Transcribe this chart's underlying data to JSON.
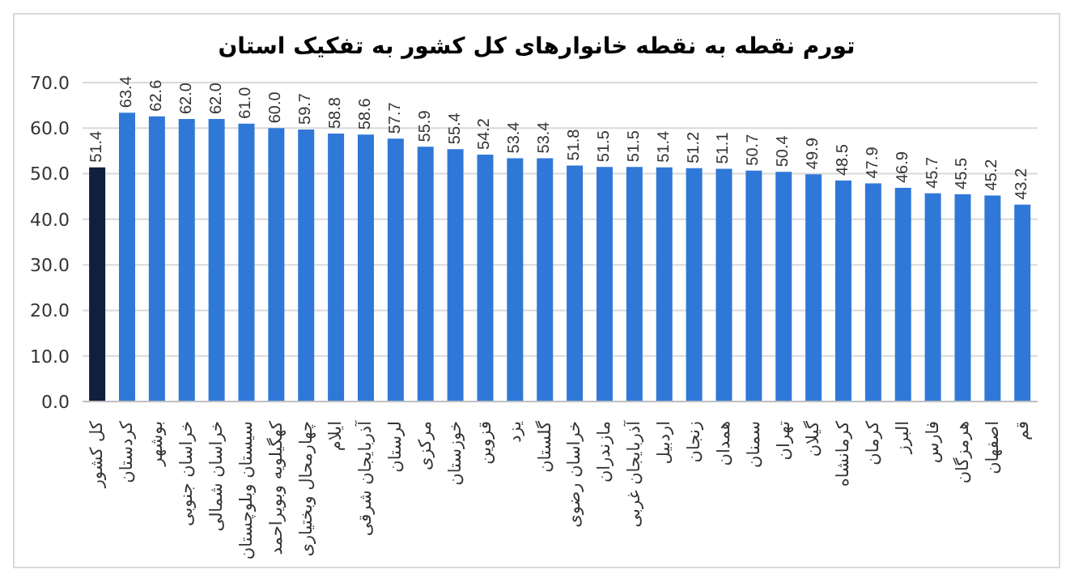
{
  "chart_data": {
    "type": "bar",
    "title": "تورم  نقطه به نقطه خانوارهای کل کشور به تفکیک استان",
    "categories": [
      "کل کشور",
      "کردستان",
      "بوشهر",
      "خراسان جنوبی",
      "خراسان شمالی",
      "سیستان وبلوچستان",
      "کهگیلویه وبویراحمد",
      "چهارمحال وبختیاری",
      "ایلام",
      "آذربایجان شرقی",
      "لرستان",
      "مرکزی",
      "خوزستان",
      "قزوین",
      "یزد",
      "گلستان",
      "خراسان رضوی",
      "مازندران",
      "آذربایجان غربی",
      "اردبیل",
      "زنجان",
      "همدان",
      "سمنان",
      "تهران",
      "گیلان",
      "کرمانشاه",
      "کرمان",
      "البرز",
      "فارس",
      "هرمزگان",
      "اصفهان",
      "قم"
    ],
    "values": [
      51.4,
      63.4,
      62.6,
      62.0,
      62.0,
      61.0,
      60.0,
      59.7,
      58.8,
      58.6,
      57.7,
      55.9,
      55.4,
      54.2,
      53.4,
      53.4,
      51.8,
      51.5,
      51.5,
      51.4,
      51.2,
      51.1,
      50.7,
      50.4,
      49.9,
      48.5,
      47.9,
      46.9,
      45.7,
      45.5,
      45.2,
      43.2
    ],
    "value_labels": [
      "51.4",
      "63.4",
      "62.6",
      "62.0",
      "62.0",
      "61.0",
      "60.0",
      "59.7",
      "58.8",
      "58.6",
      "57.7",
      "55.9",
      "55.4",
      "54.2",
      "53.4",
      "53.4",
      "51.8",
      "51.5",
      "51.5",
      "51.4",
      "51.2",
      "51.1",
      "50.7",
      "50.4",
      "49.9",
      "48.5",
      "47.9",
      "46.9",
      "45.7",
      "45.5",
      "45.2",
      "43.2"
    ],
    "colors": [
      "#0f1f3d",
      "#2f78d8",
      "#2f78d8",
      "#2f78d8",
      "#2f78d8",
      "#2f78d8",
      "#2f78d8",
      "#2f78d8",
      "#2f78d8",
      "#2f78d8",
      "#2f78d8",
      "#2f78d8",
      "#2f78d8",
      "#2f78d8",
      "#2f78d8",
      "#2f78d8",
      "#2f78d8",
      "#2f78d8",
      "#2f78d8",
      "#2f78d8",
      "#2f78d8",
      "#2f78d8",
      "#2f78d8",
      "#2f78d8",
      "#2f78d8",
      "#2f78d8",
      "#2f78d8",
      "#2f78d8",
      "#2f78d8",
      "#2f78d8",
      "#2f78d8",
      "#2f78d8"
    ],
    "ylim": [
      0,
      70
    ],
    "yticks": [
      {
        "value": 0,
        "label": "0.0"
      },
      {
        "value": 10,
        "label": "10.0"
      },
      {
        "value": 20,
        "label": "20.0"
      },
      {
        "value": 30,
        "label": "30.0"
      },
      {
        "value": 40,
        "label": "40.0"
      },
      {
        "value": 50,
        "label": "50.0"
      },
      {
        "value": 60,
        "label": "60.0"
      },
      {
        "value": 70,
        "label": "70.0"
      }
    ],
    "grid": "y"
  }
}
